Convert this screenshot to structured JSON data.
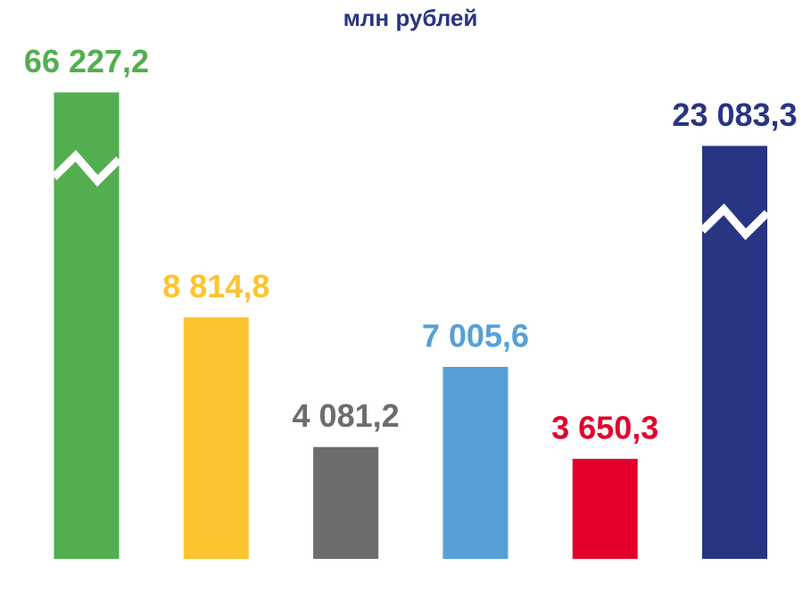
{
  "chart_data": {
    "type": "bar",
    "title": "млн рублей",
    "categories": [
      null,
      null,
      null,
      null,
      null,
      null
    ],
    "values": [
      66227.2,
      8814.8,
      4081.2,
      7005.6,
      3650.3,
      23083.3
    ],
    "value_labels": [
      "66 227,2",
      "8 814,8",
      "4 081,2",
      "7 005,6",
      "3 650,3",
      "23 083,3"
    ],
    "colors": [
      "#52ae4f",
      "#fdc330",
      "#6d6d6d",
      "#56a0d7",
      "#e4002b",
      "#283583"
    ],
    "title_color": "#283583"
  }
}
